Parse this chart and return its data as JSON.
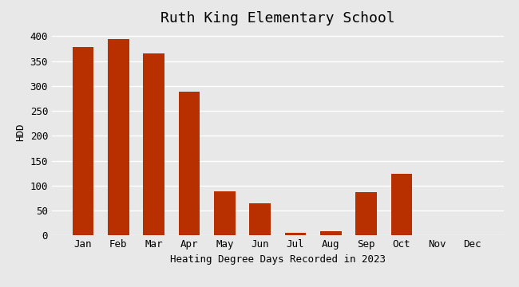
{
  "title": "Ruth King Elementary School",
  "xlabel": "Heating Degree Days Recorded in 2023",
  "ylabel": "HDD",
  "categories": [
    "Jan",
    "Feb",
    "Mar",
    "Apr",
    "May",
    "Jun",
    "Jul",
    "Aug",
    "Sep",
    "Oct",
    "Nov",
    "Dec"
  ],
  "values": [
    378,
    394,
    366,
    288,
    88,
    65,
    5,
    9,
    87,
    123,
    0,
    0
  ],
  "bar_color": "#b83000",
  "background_color": "#e8e8e8",
  "plot_bg_color": "#e8e8e8",
  "ylim": [
    0,
    415
  ],
  "yticks": [
    0,
    50,
    100,
    150,
    200,
    250,
    300,
    350,
    400
  ],
  "title_fontsize": 13,
  "label_fontsize": 9,
  "tick_fontsize": 9,
  "font_family": "monospace"
}
